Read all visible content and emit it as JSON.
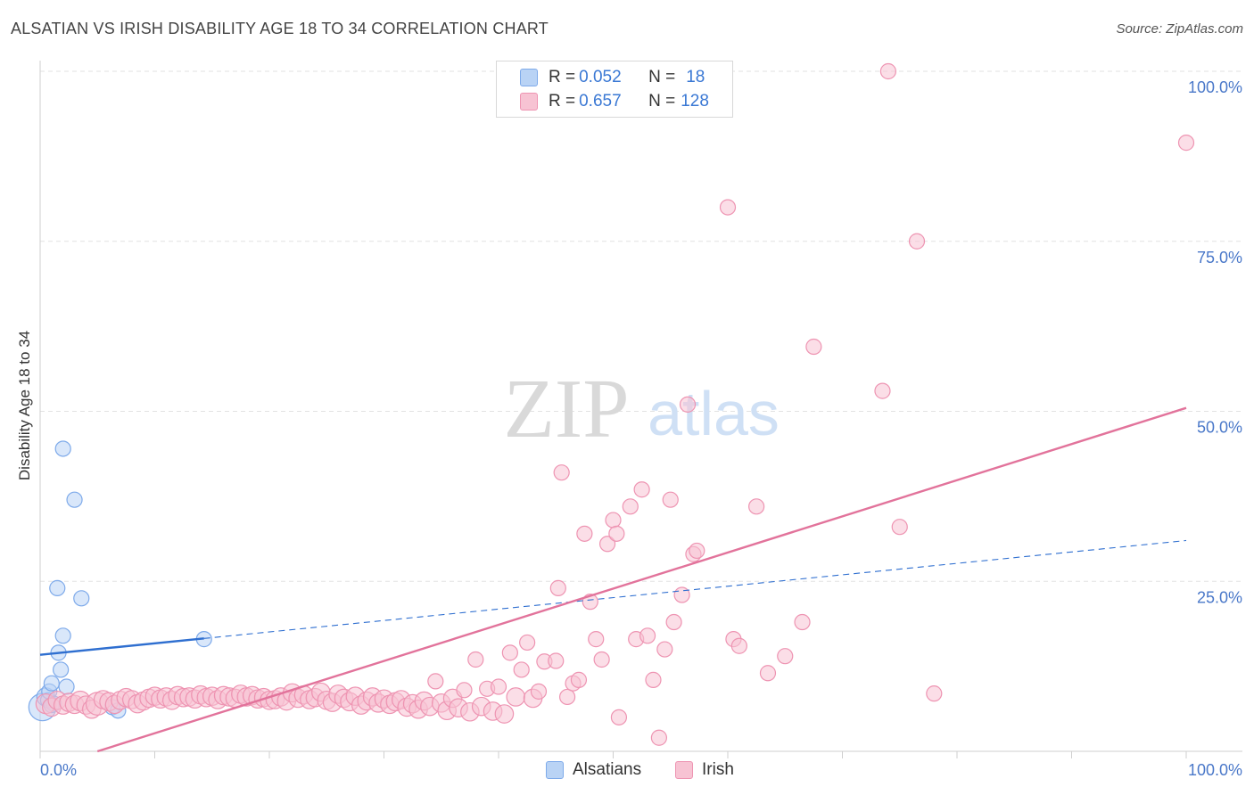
{
  "title": "ALSATIAN VS IRISH DISABILITY AGE 18 TO 34 CORRELATION CHART",
  "source": "Source: ZipAtlas.com",
  "colors": {
    "alsatian_fill": "#b9d3f5",
    "alsatian_stroke": "#7eaaea",
    "alsatian_line": "#2f6fd0",
    "irish_fill": "#f7c3d3",
    "irish_stroke": "#ee94b2",
    "irish_line": "#e2739b",
    "accent_text": "#3a78d4"
  },
  "legend": {
    "alsatian": {
      "r_label": "R = ",
      "r_value": "0.052",
      "n_label": "N = ",
      "n_value": "18"
    },
    "irish": {
      "r_label": "R = ",
      "r_value": "0.657",
      "n_label": "N = ",
      "n_value": "128"
    }
  },
  "bottom_legend": {
    "alsatian": "Alsatians",
    "irish": "Irish"
  },
  "watermark": {
    "zip": "ZIP",
    "atlas": "atlas"
  },
  "chart_data": {
    "type": "scatter",
    "title": "ALSATIAN VS IRISH DISABILITY AGE 18 TO 34 CORRELATION CHART",
    "xlabel": "",
    "ylabel": "Disability Age 18 to 34",
    "xlim": [
      0,
      100
    ],
    "ylim": [
      0,
      100
    ],
    "x_tick_labels": [
      "0.0%",
      "100.0%"
    ],
    "y_tick_labels": [
      "25.0%",
      "50.0%",
      "75.0%",
      "100.0%"
    ],
    "y_ticks": [
      25,
      50,
      75,
      100
    ],
    "grid": true,
    "series": [
      {
        "name": "Alsatians",
        "color_key": "alsatian",
        "points": [
          [
            0.2,
            6.5,
            1.8
          ],
          [
            0.5,
            8.0,
            1.2
          ],
          [
            0.7,
            7.5,
            1.0
          ],
          [
            0.8,
            8.8,
            1.0
          ],
          [
            1.0,
            10.0,
            1.0
          ],
          [
            1.2,
            7.0,
            1.0
          ],
          [
            1.5,
            24.0,
            1.0
          ],
          [
            1.6,
            14.5,
            1.0
          ],
          [
            1.8,
            12.0,
            1.0
          ],
          [
            2.0,
            17.0,
            1.0
          ],
          [
            2.0,
            44.5,
            1.0
          ],
          [
            2.3,
            9.5,
            1.0
          ],
          [
            3.0,
            37.0,
            1.0
          ],
          [
            3.6,
            22.5,
            1.0
          ],
          [
            6.3,
            6.5,
            1.0
          ],
          [
            6.8,
            6.0,
            1.0
          ],
          [
            14.3,
            16.5,
            1.0
          ],
          [
            1.0,
            6.8,
            1.0
          ]
        ],
        "trend": {
          "x0": 0,
          "y0": 14.2,
          "x1": 14.3,
          "y1": 16.6,
          "dash_to_x": 100,
          "dash_to_y": 31.0
        }
      },
      {
        "name": "Irish",
        "color_key": "irish",
        "points": [
          [
            0.5,
            7.0,
            1.3
          ],
          [
            1.0,
            6.5,
            1.2
          ],
          [
            1.5,
            7.5,
            1.2
          ],
          [
            2.0,
            6.8,
            1.2
          ],
          [
            2.5,
            7.2,
            1.2
          ],
          [
            3.0,
            6.9,
            1.2
          ],
          [
            3.5,
            7.4,
            1.3
          ],
          [
            4.0,
            6.8,
            1.2
          ],
          [
            4.5,
            6.2,
            1.2
          ],
          [
            5.0,
            7.0,
            1.5
          ],
          [
            5.5,
            7.6,
            1.2
          ],
          [
            6.0,
            7.3,
            1.2
          ],
          [
            6.5,
            6.9,
            1.2
          ],
          [
            7.0,
            7.5,
            1.2
          ],
          [
            7.5,
            7.9,
            1.2
          ],
          [
            8.0,
            7.6,
            1.2
          ],
          [
            8.5,
            7.0,
            1.2
          ],
          [
            9.0,
            7.4,
            1.2
          ],
          [
            9.5,
            7.8,
            1.2
          ],
          [
            10.0,
            8.1,
            1.2
          ],
          [
            10.5,
            7.7,
            1.2
          ],
          [
            11.0,
            8.0,
            1.2
          ],
          [
            11.5,
            7.5,
            1.2
          ],
          [
            12.0,
            8.2,
            1.2
          ],
          [
            12.5,
            7.9,
            1.2
          ],
          [
            13.0,
            8.0,
            1.2
          ],
          [
            13.5,
            7.7,
            1.2
          ],
          [
            14.0,
            8.3,
            1.2
          ],
          [
            14.5,
            7.9,
            1.2
          ],
          [
            15.0,
            8.1,
            1.2
          ],
          [
            15.5,
            7.6,
            1.2
          ],
          [
            16.0,
            8.2,
            1.2
          ],
          [
            16.5,
            8.0,
            1.2
          ],
          [
            17.0,
            7.8,
            1.2
          ],
          [
            17.5,
            8.4,
            1.2
          ],
          [
            18.0,
            8.0,
            1.2
          ],
          [
            18.5,
            8.2,
            1.2
          ],
          [
            19.0,
            7.7,
            1.2
          ],
          [
            19.5,
            7.9,
            1.2
          ],
          [
            20.0,
            7.5,
            1.2
          ],
          [
            20.5,
            7.6,
            1.2
          ],
          [
            21.0,
            8.0,
            1.2
          ],
          [
            21.5,
            7.4,
            1.2
          ],
          [
            22.0,
            8.6,
            1.2
          ],
          [
            22.5,
            7.8,
            1.2
          ],
          [
            23.0,
            8.3,
            1.2
          ],
          [
            23.5,
            7.6,
            1.2
          ],
          [
            24.0,
            7.9,
            1.2
          ],
          [
            24.5,
            8.7,
            1.2
          ],
          [
            25.0,
            7.5,
            1.2
          ],
          [
            25.5,
            7.2,
            1.2
          ],
          [
            26.0,
            8.4,
            1.2
          ],
          [
            26.5,
            7.8,
            1.2
          ],
          [
            27.0,
            7.3,
            1.2
          ],
          [
            27.5,
            8.1,
            1.2
          ],
          [
            28.0,
            6.8,
            1.2
          ],
          [
            28.5,
            7.4,
            1.2
          ],
          [
            29.0,
            8.0,
            1.2
          ],
          [
            29.5,
            7.1,
            1.2
          ],
          [
            30.0,
            7.7,
            1.2
          ],
          [
            30.5,
            6.9,
            1.2
          ],
          [
            31.0,
            7.3,
            1.2
          ],
          [
            31.5,
            7.6,
            1.2
          ],
          [
            32.0,
            6.5,
            1.2
          ],
          [
            32.5,
            7.0,
            1.2
          ],
          [
            33.0,
            6.2,
            1.2
          ],
          [
            33.5,
            7.4,
            1.2
          ],
          [
            34.0,
            6.6,
            1.2
          ],
          [
            34.5,
            10.3,
            1.0
          ],
          [
            35.0,
            7.1,
            1.2
          ],
          [
            35.5,
            6.0,
            1.2
          ],
          [
            36.0,
            7.8,
            1.2
          ],
          [
            36.5,
            6.4,
            1.2
          ],
          [
            37.0,
            9.0,
            1.0
          ],
          [
            37.5,
            5.8,
            1.2
          ],
          [
            38.0,
            13.5,
            1.0
          ],
          [
            38.5,
            6.6,
            1.2
          ],
          [
            39.0,
            9.2,
            1.0
          ],
          [
            39.5,
            5.9,
            1.2
          ],
          [
            40.0,
            9.5,
            1.0
          ],
          [
            40.5,
            5.5,
            1.2
          ],
          [
            41.0,
            14.5,
            1.0
          ],
          [
            41.5,
            8.0,
            1.2
          ],
          [
            42.0,
            12.0,
            1.0
          ],
          [
            42.5,
            16.0,
            1.0
          ],
          [
            43.0,
            7.8,
            1.2
          ],
          [
            43.5,
            8.8,
            1.0
          ],
          [
            44.0,
            13.2,
            1.0
          ],
          [
            45.0,
            13.3,
            1.0
          ],
          [
            45.2,
            24.0,
            1.0
          ],
          [
            45.5,
            41.0,
            1.0
          ],
          [
            46.0,
            8.0,
            1.0
          ],
          [
            46.5,
            10.0,
            1.0
          ],
          [
            47.0,
            10.5,
            1.0
          ],
          [
            47.5,
            32.0,
            1.0
          ],
          [
            48.0,
            22.0,
            1.0
          ],
          [
            48.5,
            16.5,
            1.0
          ],
          [
            49.0,
            13.5,
            1.0
          ],
          [
            49.5,
            30.5,
            1.0
          ],
          [
            50.0,
            34.0,
            1.0
          ],
          [
            50.3,
            32.0,
            1.0
          ],
          [
            50.5,
            5.0,
            1.0
          ],
          [
            51.5,
            36.0,
            1.0
          ],
          [
            52.0,
            16.5,
            1.0
          ],
          [
            52.5,
            38.5,
            1.0
          ],
          [
            53.0,
            17.0,
            1.0
          ],
          [
            53.5,
            10.5,
            1.0
          ],
          [
            54.0,
            2.0,
            1.0
          ],
          [
            54.5,
            15.0,
            1.0
          ],
          [
            55.0,
            37.0,
            1.0
          ],
          [
            55.3,
            19.0,
            1.0
          ],
          [
            56.0,
            23.0,
            1.0
          ],
          [
            56.5,
            51.0,
            1.0
          ],
          [
            57.0,
            29.0,
            1.0
          ],
          [
            57.3,
            29.5,
            1.0
          ],
          [
            60.0,
            80.0,
            1.0
          ],
          [
            60.5,
            16.5,
            1.0
          ],
          [
            61.0,
            15.5,
            1.0
          ],
          [
            62.5,
            36.0,
            1.0
          ],
          [
            63.5,
            11.5,
            1.0
          ],
          [
            65.0,
            14.0,
            1.0
          ],
          [
            66.5,
            19.0,
            1.0
          ],
          [
            67.5,
            59.5,
            1.0
          ],
          [
            73.5,
            53.0,
            1.0
          ],
          [
            75.0,
            33.0,
            1.0
          ],
          [
            76.5,
            75.0,
            1.0
          ],
          [
            78.0,
            8.5,
            1.0
          ],
          [
            74.0,
            100.0,
            1.0
          ],
          [
            100.0,
            89.5,
            1.0
          ]
        ],
        "trend": {
          "x0": 5,
          "y0": 0,
          "x1": 100,
          "y1": 50.5
        }
      }
    ]
  }
}
